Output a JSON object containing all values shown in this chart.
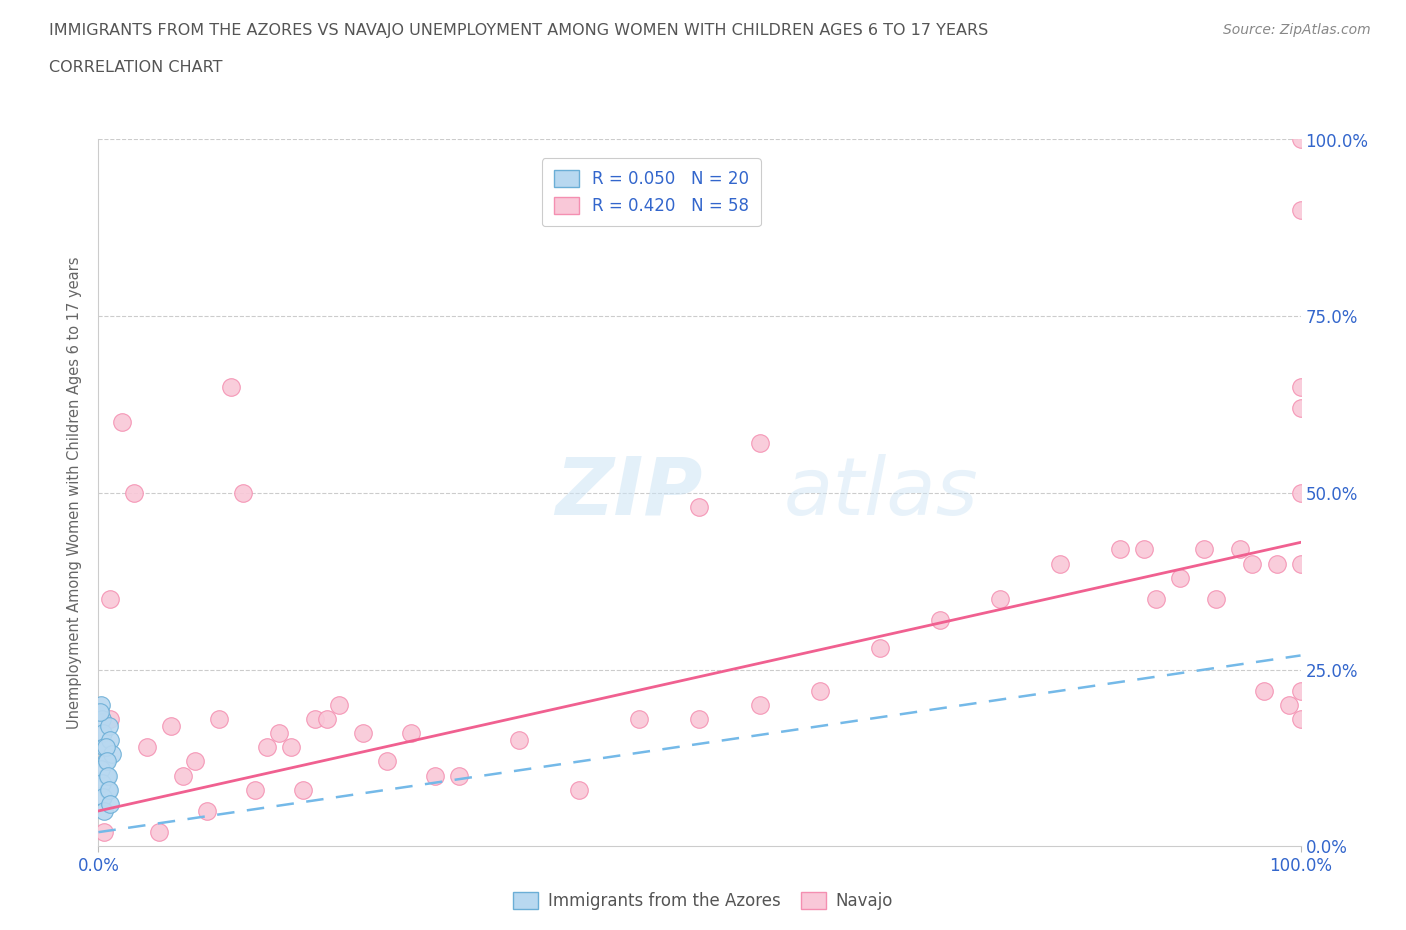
{
  "title_line1": "IMMIGRANTS FROM THE AZORES VS NAVAJO UNEMPLOYMENT AMONG WOMEN WITH CHILDREN AGES 6 TO 17 YEARS",
  "title_line2": "CORRELATION CHART",
  "source_text": "Source: ZipAtlas.com",
  "ylabel": "Unemployment Among Women with Children Ages 6 to 17 years",
  "watermark_zip": "ZIP",
  "watermark_atlas": "atlas",
  "legend_label1": "Immigrants from the Azores",
  "legend_label2": "Navajo",
  "color_blue_face": "#b8d8f0",
  "color_blue_edge": "#6baed6",
  "color_pink_face": "#f9c8d8",
  "color_pink_edge": "#f48fb1",
  "color_trendline_blue": "#74b9e8",
  "color_trendline_pink": "#f06090",
  "title_color": "#555555",
  "axis_label_color": "#3366cc",
  "blue_trendline": [
    0.02,
    0.27
  ],
  "pink_trendline": [
    0.05,
    0.43
  ],
  "blue_points_x": [
    0.002,
    0.003,
    0.004,
    0.005,
    0.006,
    0.007,
    0.008,
    0.009,
    0.01,
    0.011,
    0.001,
    0.002,
    0.003,
    0.004,
    0.005,
    0.006,
    0.007,
    0.008,
    0.009,
    0.01
  ],
  "blue_points_y": [
    0.2,
    0.18,
    0.16,
    0.14,
    0.12,
    0.1,
    0.08,
    0.17,
    0.15,
    0.13,
    0.19,
    0.11,
    0.09,
    0.07,
    0.05,
    0.14,
    0.12,
    0.1,
    0.08,
    0.06
  ],
  "pink_points_x": [
    0.005,
    0.01,
    0.01,
    0.02,
    0.03,
    0.04,
    0.05,
    0.06,
    0.07,
    0.08,
    0.09,
    0.1,
    0.11,
    0.12,
    0.13,
    0.14,
    0.15,
    0.16,
    0.17,
    0.18,
    0.19,
    0.2,
    0.22,
    0.24,
    0.26,
    0.28,
    0.3,
    0.35,
    0.4,
    0.45,
    0.5,
    0.55,
    0.6,
    0.65,
    0.7,
    0.75,
    0.8,
    0.85,
    0.87,
    0.88,
    0.9,
    0.92,
    0.93,
    0.95,
    0.96,
    0.97,
    0.98,
    0.99,
    1.0,
    1.0,
    1.0,
    1.0,
    1.0,
    1.0,
    1.0,
    1.0,
    0.5,
    0.55
  ],
  "pink_points_y": [
    0.02,
    0.35,
    0.18,
    0.6,
    0.5,
    0.14,
    0.02,
    0.17,
    0.1,
    0.12,
    0.05,
    0.18,
    0.65,
    0.5,
    0.08,
    0.14,
    0.16,
    0.14,
    0.08,
    0.18,
    0.18,
    0.2,
    0.16,
    0.12,
    0.16,
    0.1,
    0.1,
    0.15,
    0.08,
    0.18,
    0.18,
    0.2,
    0.22,
    0.28,
    0.32,
    0.35,
    0.4,
    0.42,
    0.42,
    0.35,
    0.38,
    0.42,
    0.35,
    0.42,
    0.4,
    0.22,
    0.4,
    0.2,
    1.0,
    0.9,
    0.65,
    0.62,
    0.5,
    0.4,
    0.22,
    0.18,
    0.48,
    0.57
  ]
}
